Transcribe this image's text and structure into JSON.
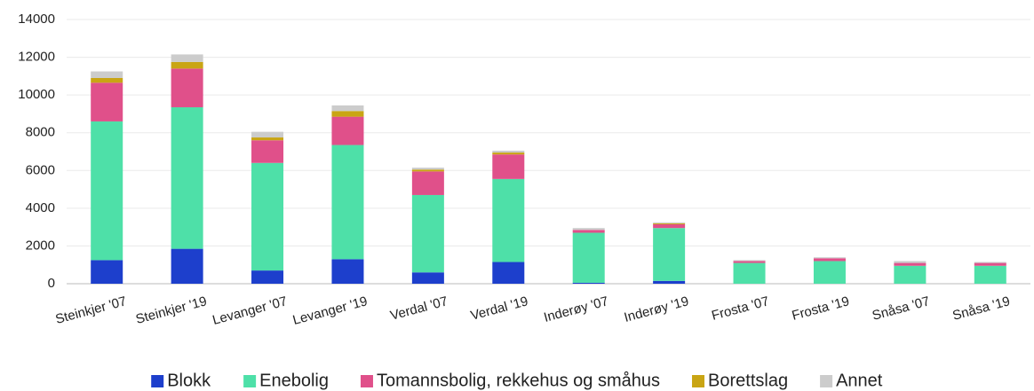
{
  "chart_data": {
    "type": "stacked_bar",
    "categories": [
      "Steinkjer '07",
      "Steinkjer '19",
      "Levanger '07",
      "Levanger '19",
      "Verdal '07",
      "Verdal '19",
      "Inderøy '07",
      "Inderøy '19",
      "Frosta '07",
      "Frosta '19",
      "Snåsa '07",
      "Snåsa '19"
    ],
    "series": [
      {
        "name": "Blokk",
        "color": "#1d3fcc",
        "values": [
          1250,
          1850,
          700,
          1300,
          600,
          1150,
          50,
          150,
          0,
          0,
          0,
          0
        ]
      },
      {
        "name": "Enebolig",
        "color": "#4ee0a8",
        "values": [
          7350,
          7500,
          5700,
          6050,
          4100,
          4400,
          2650,
          2800,
          1100,
          1200,
          950,
          950
        ]
      },
      {
        "name": "Tomannsbolig, rekkehus og småhus",
        "color": "#e0508a",
        "values": [
          2050,
          2050,
          1200,
          1500,
          1250,
          1300,
          150,
          200,
          100,
          150,
          150,
          150
        ]
      },
      {
        "name": "Borettslag",
        "color": "#c9a514",
        "values": [
          250,
          350,
          150,
          300,
          100,
          100,
          0,
          50,
          0,
          0,
          0,
          0
        ]
      },
      {
        "name": "Annet",
        "color": "#cccccc",
        "values": [
          350,
          400,
          300,
          300,
          100,
          100,
          100,
          50,
          50,
          50,
          100,
          50
        ]
      }
    ],
    "ylim": [
      0,
      14000
    ],
    "yticks": [
      0,
      2000,
      4000,
      6000,
      8000,
      10000,
      12000,
      14000
    ],
    "grid": true,
    "legend": "bottom"
  }
}
